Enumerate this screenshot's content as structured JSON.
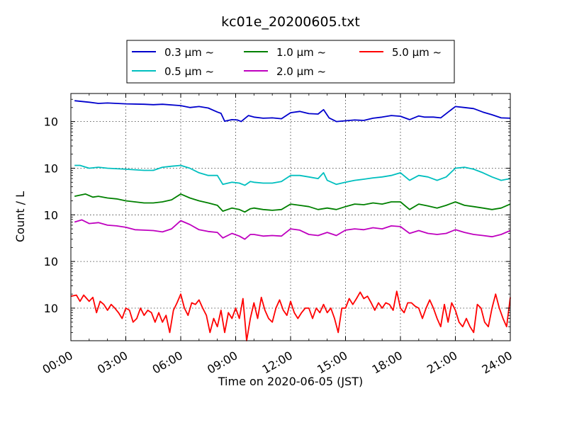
{
  "chart_data": {
    "type": "line",
    "title": "kc01e_20200605.txt",
    "xlabel": "Time on 2020-06-05 (JST)",
    "ylabel": "Count / L",
    "yscale": "log",
    "ylim": [
      2,
      400000
    ],
    "xlim": [
      0,
      24
    ],
    "grid": true,
    "legend_position": "top-center",
    "xticks": [
      "00:00",
      "03:00",
      "06:00",
      "09:00",
      "12:00",
      "15:00",
      "18:00",
      "21:00",
      "24:00"
    ],
    "yticks": [
      {
        "base": "10",
        "exp": "1"
      },
      {
        "base": "10",
        "exp": "2"
      },
      {
        "base": "10",
        "exp": "3"
      },
      {
        "base": "10",
        "exp": "4"
      },
      {
        "base": "10",
        "exp": "5"
      }
    ],
    "series": [
      {
        "name": "0.3 μm ~",
        "color": "#0000cc",
        "points": [
          [
            0.2,
            280000
          ],
          [
            1,
            260000
          ],
          [
            1.5,
            245000
          ],
          [
            2,
            250000
          ],
          [
            3,
            240000
          ],
          [
            4,
            235000
          ],
          [
            4.5,
            230000
          ],
          [
            5,
            235000
          ],
          [
            6,
            220000
          ],
          [
            6.5,
            200000
          ],
          [
            7,
            210000
          ],
          [
            7.5,
            195000
          ],
          [
            8,
            160000
          ],
          [
            8.2,
            150000
          ],
          [
            8.4,
            102000
          ],
          [
            8.8,
            110000
          ],
          [
            9.1,
            108000
          ],
          [
            9.3,
            100000
          ],
          [
            9.7,
            135000
          ],
          [
            10,
            125000
          ],
          [
            10.5,
            118000
          ],
          [
            11,
            120000
          ],
          [
            11.5,
            115000
          ],
          [
            12,
            155000
          ],
          [
            12.5,
            165000
          ],
          [
            13,
            148000
          ],
          [
            13.5,
            145000
          ],
          [
            13.8,
            180000
          ],
          [
            14.1,
            120000
          ],
          [
            14.5,
            100000
          ],
          [
            15,
            104000
          ],
          [
            15.5,
            108000
          ],
          [
            16,
            106000
          ],
          [
            16.5,
            118000
          ],
          [
            17,
            125000
          ],
          [
            17.5,
            135000
          ],
          [
            18,
            130000
          ],
          [
            18.5,
            110000
          ],
          [
            19,
            132000
          ],
          [
            19.3,
            125000
          ],
          [
            19.8,
            125000
          ],
          [
            20.2,
            120000
          ],
          [
            21,
            210000
          ],
          [
            21.5,
            200000
          ],
          [
            22,
            190000
          ],
          [
            22.5,
            160000
          ],
          [
            23,
            140000
          ],
          [
            23.5,
            120000
          ],
          [
            24,
            118000
          ]
        ]
      },
      {
        "name": "0.5 μm ~",
        "color": "#00bfbf",
        "points": [
          [
            0.2,
            11500
          ],
          [
            0.5,
            11500
          ],
          [
            1,
            10000
          ],
          [
            1.5,
            10500
          ],
          [
            2,
            10000
          ],
          [
            3,
            9500
          ],
          [
            4,
            9000
          ],
          [
            4.5,
            9000
          ],
          [
            5,
            10500
          ],
          [
            5.5,
            11000
          ],
          [
            6,
            11500
          ],
          [
            6.5,
            10000
          ],
          [
            7,
            8000
          ],
          [
            7.5,
            7000
          ],
          [
            8,
            7000
          ],
          [
            8.3,
            4500
          ],
          [
            8.8,
            5000
          ],
          [
            9.2,
            4800
          ],
          [
            9.5,
            4300
          ],
          [
            9.8,
            5200
          ],
          [
            10,
            5000
          ],
          [
            10.5,
            4800
          ],
          [
            11,
            4800
          ],
          [
            11.5,
            5200
          ],
          [
            12,
            7000
          ],
          [
            12.5,
            7000
          ],
          [
            13,
            6500
          ],
          [
            13.5,
            6000
          ],
          [
            13.8,
            8000
          ],
          [
            14,
            5500
          ],
          [
            14.5,
            4500
          ],
          [
            15,
            5000
          ],
          [
            15.5,
            5500
          ],
          [
            16,
            5800
          ],
          [
            16.5,
            6200
          ],
          [
            17,
            6500
          ],
          [
            17.5,
            7000
          ],
          [
            18,
            8000
          ],
          [
            18.5,
            5500
          ],
          [
            19,
            7000
          ],
          [
            19.5,
            6500
          ],
          [
            20,
            5500
          ],
          [
            20.5,
            6500
          ],
          [
            21,
            10000
          ],
          [
            21.5,
            10500
          ],
          [
            22,
            9500
          ],
          [
            22.5,
            8000
          ],
          [
            23,
            6500
          ],
          [
            23.5,
            5500
          ],
          [
            24,
            6000
          ]
        ]
      },
      {
        "name": "1.0 μm ~",
        "color": "#008000",
        "points": [
          [
            0.2,
            2500
          ],
          [
            0.8,
            2800
          ],
          [
            1.2,
            2400
          ],
          [
            1.5,
            2500
          ],
          [
            2,
            2300
          ],
          [
            2.5,
            2200
          ],
          [
            3,
            2000
          ],
          [
            3.5,
            1900
          ],
          [
            4,
            1800
          ],
          [
            4.5,
            1800
          ],
          [
            5,
            1900
          ],
          [
            5.5,
            2100
          ],
          [
            6,
            2800
          ],
          [
            6.5,
            2300
          ],
          [
            7,
            2000
          ],
          [
            7.5,
            1800
          ],
          [
            8,
            1600
          ],
          [
            8.3,
            1200
          ],
          [
            8.8,
            1400
          ],
          [
            9.2,
            1300
          ],
          [
            9.5,
            1150
          ],
          [
            9.8,
            1350
          ],
          [
            10,
            1400
          ],
          [
            10.5,
            1300
          ],
          [
            11,
            1250
          ],
          [
            11.5,
            1300
          ],
          [
            12,
            1700
          ],
          [
            12.5,
            1600
          ],
          [
            13,
            1500
          ],
          [
            13.5,
            1300
          ],
          [
            14,
            1400
          ],
          [
            14.5,
            1300
          ],
          [
            15,
            1500
          ],
          [
            15.5,
            1700
          ],
          [
            16,
            1650
          ],
          [
            16.5,
            1800
          ],
          [
            17,
            1700
          ],
          [
            17.5,
            1900
          ],
          [
            18,
            1900
          ],
          [
            18.5,
            1300
          ],
          [
            19,
            1700
          ],
          [
            19.5,
            1550
          ],
          [
            20,
            1400
          ],
          [
            20.5,
            1600
          ],
          [
            21,
            1900
          ],
          [
            21.5,
            1600
          ],
          [
            22,
            1500
          ],
          [
            22.5,
            1400
          ],
          [
            23,
            1300
          ],
          [
            23.5,
            1400
          ],
          [
            24,
            1700
          ]
        ]
      },
      {
        "name": "2.0 μm ~",
        "color": "#bf00bf",
        "points": [
          [
            0.2,
            700
          ],
          [
            0.6,
            780
          ],
          [
            1,
            650
          ],
          [
            1.5,
            680
          ],
          [
            2,
            600
          ],
          [
            2.5,
            580
          ],
          [
            3,
            540
          ],
          [
            3.5,
            480
          ],
          [
            4,
            470
          ],
          [
            4.5,
            460
          ],
          [
            5,
            430
          ],
          [
            5.5,
            500
          ],
          [
            6,
            750
          ],
          [
            6.5,
            620
          ],
          [
            7,
            480
          ],
          [
            7.5,
            440
          ],
          [
            8,
            420
          ],
          [
            8.3,
            320
          ],
          [
            8.8,
            400
          ],
          [
            9.2,
            350
          ],
          [
            9.5,
            300
          ],
          [
            9.8,
            380
          ],
          [
            10,
            380
          ],
          [
            10.5,
            350
          ],
          [
            11,
            360
          ],
          [
            11.5,
            350
          ],
          [
            12,
            500
          ],
          [
            12.5,
            470
          ],
          [
            13,
            380
          ],
          [
            13.5,
            360
          ],
          [
            14,
            420
          ],
          [
            14.5,
            360
          ],
          [
            15,
            470
          ],
          [
            15.5,
            500
          ],
          [
            16,
            480
          ],
          [
            16.5,
            530
          ],
          [
            17,
            500
          ],
          [
            17.5,
            580
          ],
          [
            18,
            560
          ],
          [
            18.5,
            400
          ],
          [
            19,
            460
          ],
          [
            19.5,
            400
          ],
          [
            20,
            380
          ],
          [
            20.5,
            400
          ],
          [
            21,
            480
          ],
          [
            21.5,
            420
          ],
          [
            22,
            380
          ],
          [
            22.5,
            360
          ],
          [
            23,
            340
          ],
          [
            23.5,
            380
          ],
          [
            24,
            460
          ]
        ]
      },
      {
        "name": "5.0 μm ~",
        "color": "#ff0000",
        "points": [
          [
            0,
            18
          ],
          [
            0.3,
            19
          ],
          [
            0.5,
            14
          ],
          [
            0.7,
            19
          ],
          [
            1,
            14
          ],
          [
            1.2,
            17
          ],
          [
            1.4,
            8
          ],
          [
            1.6,
            14
          ],
          [
            1.8,
            12
          ],
          [
            2,
            9
          ],
          [
            2.2,
            12
          ],
          [
            2.4,
            10
          ],
          [
            2.6,
            8
          ],
          [
            2.8,
            6
          ],
          [
            3,
            10
          ],
          [
            3.2,
            9
          ],
          [
            3.4,
            5
          ],
          [
            3.6,
            6
          ],
          [
            3.8,
            10
          ],
          [
            4,
            7
          ],
          [
            4.2,
            9
          ],
          [
            4.4,
            8
          ],
          [
            4.6,
            5
          ],
          [
            4.8,
            8
          ],
          [
            5,
            5
          ],
          [
            5.2,
            7
          ],
          [
            5.4,
            3
          ],
          [
            5.6,
            9
          ],
          [
            5.8,
            13
          ],
          [
            6,
            20
          ],
          [
            6.2,
            10
          ],
          [
            6.4,
            7
          ],
          [
            6.6,
            13
          ],
          [
            6.8,
            12
          ],
          [
            7,
            15
          ],
          [
            7.2,
            10
          ],
          [
            7.4,
            7
          ],
          [
            7.6,
            3
          ],
          [
            7.8,
            6
          ],
          [
            8,
            4
          ],
          [
            8.2,
            9
          ],
          [
            8.4,
            3
          ],
          [
            8.6,
            8
          ],
          [
            8.8,
            6
          ],
          [
            9,
            10
          ],
          [
            9.2,
            6
          ],
          [
            9.4,
            16
          ],
          [
            9.6,
            2
          ],
          [
            9.8,
            6
          ],
          [
            10,
            13
          ],
          [
            10.2,
            6
          ],
          [
            10.4,
            17
          ],
          [
            10.6,
            9
          ],
          [
            10.8,
            6
          ],
          [
            11,
            5
          ],
          [
            11.2,
            10
          ],
          [
            11.4,
            15
          ],
          [
            11.6,
            9
          ],
          [
            11.8,
            7
          ],
          [
            12,
            14
          ],
          [
            12.2,
            8
          ],
          [
            12.4,
            6
          ],
          [
            12.6,
            8
          ],
          [
            12.8,
            10
          ],
          [
            13,
            10
          ],
          [
            13.2,
            6
          ],
          [
            13.4,
            10
          ],
          [
            13.6,
            8
          ],
          [
            13.8,
            12
          ],
          [
            14,
            8
          ],
          [
            14.2,
            10
          ],
          [
            14.4,
            6
          ],
          [
            14.6,
            3
          ],
          [
            14.8,
            10
          ],
          [
            15,
            10
          ],
          [
            15.2,
            16
          ],
          [
            15.4,
            12
          ],
          [
            15.6,
            16
          ],
          [
            15.8,
            22
          ],
          [
            16,
            16
          ],
          [
            16.2,
            18
          ],
          [
            16.4,
            13
          ],
          [
            16.6,
            9
          ],
          [
            16.8,
            13
          ],
          [
            17,
            10
          ],
          [
            17.2,
            13
          ],
          [
            17.4,
            12
          ],
          [
            17.6,
            9
          ],
          [
            17.8,
            23
          ],
          [
            18,
            10
          ],
          [
            18.2,
            8
          ],
          [
            18.4,
            13
          ],
          [
            18.6,
            13
          ],
          [
            18.8,
            11
          ],
          [
            19,
            10
          ],
          [
            19.2,
            6
          ],
          [
            19.4,
            10
          ],
          [
            19.6,
            15
          ],
          [
            19.8,
            10
          ],
          [
            20,
            6
          ],
          [
            20.2,
            4
          ],
          [
            20.4,
            12
          ],
          [
            20.6,
            5
          ],
          [
            20.8,
            13
          ],
          [
            21,
            9
          ],
          [
            21.2,
            5
          ],
          [
            21.4,
            4
          ],
          [
            21.6,
            6
          ],
          [
            21.8,
            4
          ],
          [
            22,
            3
          ],
          [
            22.2,
            12
          ],
          [
            22.4,
            10
          ],
          [
            22.6,
            5
          ],
          [
            22.8,
            4
          ],
          [
            23,
            10
          ],
          [
            23.2,
            20
          ],
          [
            23.4,
            10
          ],
          [
            23.6,
            6
          ],
          [
            23.8,
            4
          ],
          [
            24,
            17
          ]
        ]
      }
    ]
  }
}
